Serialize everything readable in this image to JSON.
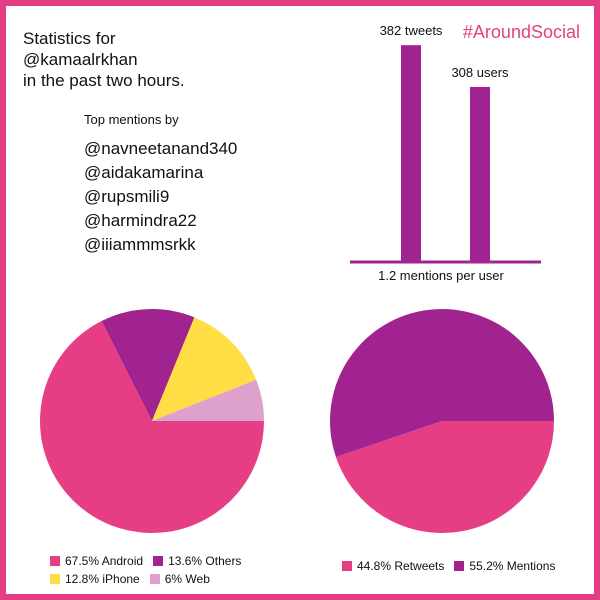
{
  "header": {
    "title": "Statistics for\n@kamaalrkhan\nin the past two hours.",
    "hashtag": "#AroundSocial"
  },
  "top_mentions": {
    "heading": "Top mentions by",
    "users": [
      "@navneetanand340",
      "@aidakamarina",
      "@rupsmili9",
      "@harmindra22",
      "@iiiammmsrkk"
    ]
  },
  "colors": {
    "pink": "#e63e84",
    "purple": "#a0238f",
    "yellow": "#ffdd44",
    "lilac": "#dea0cc"
  },
  "chart_data": [
    {
      "type": "bar",
      "categories": [
        "tweets",
        "users"
      ],
      "values": [
        382,
        308
      ],
      "data_labels": [
        "382 tweets",
        "308 users"
      ],
      "xlabel": "1.2 mentions per user",
      "ylim": [
        0,
        400
      ],
      "grid": false,
      "color": "#a0238f"
    },
    {
      "type": "pie",
      "slices": [
        {
          "label": "Android",
          "value": 67.5,
          "legend": "67.5% Android",
          "color": "#e63e84"
        },
        {
          "label": "Others",
          "value": 13.6,
          "legend": "13.6% Others",
          "color": "#a0238f"
        },
        {
          "label": "iPhone",
          "value": 12.8,
          "legend": "12.8% iPhone",
          "color": "#ffdd44"
        },
        {
          "label": "Web",
          "value": 6,
          "legend": "6% Web",
          "color": "#dea0cc"
        }
      ],
      "legend_placement": "bottom"
    },
    {
      "type": "pie",
      "slices": [
        {
          "label": "Retweets",
          "value": 44.8,
          "legend": "44.8% Retweets",
          "color": "#e63e84"
        },
        {
          "label": "Mentions",
          "value": 55.2,
          "legend": "55.2% Mentions",
          "color": "#a0238f"
        }
      ],
      "legend_placement": "bottom"
    }
  ]
}
